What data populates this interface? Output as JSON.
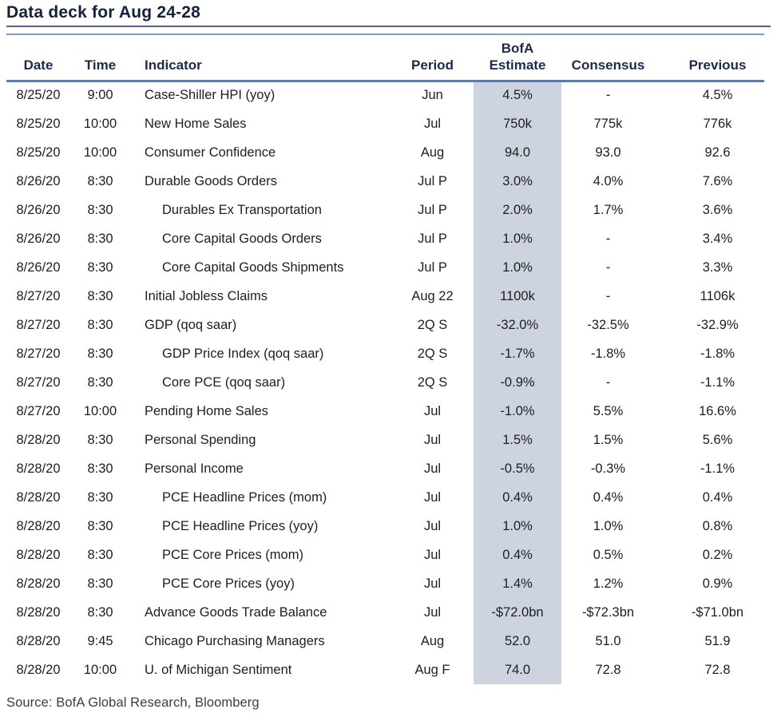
{
  "title": "Data deck for Aug 24-28",
  "source": "Source: BofA Global Research, Bloomberg",
  "colors": {
    "title_text": "#16213d",
    "header_text": "#1c2b4d",
    "body_text": "#1e1e1e",
    "estimate_highlight": "#cdd4df",
    "title_rule": "#566178",
    "table_top_rule": "#7b9cc0",
    "header_rule": "#5d7ba6"
  },
  "table": {
    "header": {
      "date": "Date",
      "time": "Time",
      "indicator": "Indicator",
      "period": "Period",
      "estimate_line1": "BofA",
      "estimate_line2": "Estimate",
      "consensus": "Consensus",
      "previous": "Previous"
    },
    "rows": [
      {
        "date": "8/25/20",
        "time": "9:00",
        "indicator": "Case-Shiller HPI (yoy)",
        "indent": false,
        "period": "Jun",
        "estimate": "4.5%",
        "consensus": "-",
        "previous": "4.5%"
      },
      {
        "date": "8/25/20",
        "time": "10:00",
        "indicator": "New Home Sales",
        "indent": false,
        "period": "Jul",
        "estimate": "750k",
        "consensus": "775k",
        "previous": "776k"
      },
      {
        "date": "8/25/20",
        "time": "10:00",
        "indicator": "Consumer Confidence",
        "indent": false,
        "period": "Aug",
        "estimate": "94.0",
        "consensus": "93.0",
        "previous": "92.6"
      },
      {
        "date": "8/26/20",
        "time": "8:30",
        "indicator": "Durable Goods Orders",
        "indent": false,
        "period": "Jul P",
        "estimate": "3.0%",
        "consensus": "4.0%",
        "previous": "7.6%"
      },
      {
        "date": "8/26/20",
        "time": "8:30",
        "indicator": "Durables Ex Transportation",
        "indent": true,
        "period": "Jul P",
        "estimate": "2.0%",
        "consensus": "1.7%",
        "previous": "3.6%"
      },
      {
        "date": "8/26/20",
        "time": "8:30",
        "indicator": "Core Capital Goods Orders",
        "indent": true,
        "period": "Jul P",
        "estimate": "1.0%",
        "consensus": "-",
        "previous": "3.4%"
      },
      {
        "date": "8/26/20",
        "time": "8:30",
        "indicator": "Core Capital Goods Shipments",
        "indent": true,
        "period": "Jul P",
        "estimate": "1.0%",
        "consensus": "-",
        "previous": "3.3%"
      },
      {
        "date": "8/27/20",
        "time": "8:30",
        "indicator": "Initial Jobless Claims",
        "indent": false,
        "period": "Aug 22",
        "estimate": "1100k",
        "consensus": "-",
        "previous": "1106k"
      },
      {
        "date": "8/27/20",
        "time": "8:30",
        "indicator": "GDP (qoq saar)",
        "indent": false,
        "period": "2Q S",
        "estimate": "-32.0%",
        "consensus": "-32.5%",
        "previous": "-32.9%"
      },
      {
        "date": "8/27/20",
        "time": "8:30",
        "indicator": "GDP Price Index (qoq saar)",
        "indent": true,
        "period": "2Q S",
        "estimate": "-1.7%",
        "consensus": "-1.8%",
        "previous": "-1.8%"
      },
      {
        "date": "8/27/20",
        "time": "8:30",
        "indicator": "Core PCE (qoq saar)",
        "indent": true,
        "period": "2Q S",
        "estimate": "-0.9%",
        "consensus": "-",
        "previous": "-1.1%"
      },
      {
        "date": "8/27/20",
        "time": "10:00",
        "indicator": "Pending Home Sales",
        "indent": false,
        "period": "Jul",
        "estimate": "-1.0%",
        "consensus": "5.5%",
        "previous": "16.6%"
      },
      {
        "date": "8/28/20",
        "time": "8:30",
        "indicator": "Personal Spending",
        "indent": false,
        "period": "Jul",
        "estimate": "1.5%",
        "consensus": "1.5%",
        "previous": "5.6%"
      },
      {
        "date": "8/28/20",
        "time": "8:30",
        "indicator": "Personal Income",
        "indent": false,
        "period": "Jul",
        "estimate": "-0.5%",
        "consensus": "-0.3%",
        "previous": "-1.1%"
      },
      {
        "date": "8/28/20",
        "time": "8:30",
        "indicator": "PCE Headline Prices (mom)",
        "indent": true,
        "period": "Jul",
        "estimate": "0.4%",
        "consensus": "0.4%",
        "previous": "0.4%"
      },
      {
        "date": "8/28/20",
        "time": "8:30",
        "indicator": "PCE Headline Prices (yoy)",
        "indent": true,
        "period": "Jul",
        "estimate": "1.0%",
        "consensus": "1.0%",
        "previous": "0.8%"
      },
      {
        "date": "8/28/20",
        "time": "8:30",
        "indicator": "PCE Core Prices (mom)",
        "indent": true,
        "period": "Jul",
        "estimate": "0.4%",
        "consensus": "0.5%",
        "previous": "0.2%"
      },
      {
        "date": "8/28/20",
        "time": "8:30",
        "indicator": "PCE Core Prices (yoy)",
        "indent": true,
        "period": "Jul",
        "estimate": "1.4%",
        "consensus": "1.2%",
        "previous": "0.9%"
      },
      {
        "date": "8/28/20",
        "time": "8:30",
        "indicator": "Advance Goods Trade Balance",
        "indent": false,
        "period": "Jul",
        "estimate": "-$72.0bn",
        "consensus": "-$72.3bn",
        "previous": "-$71.0bn"
      },
      {
        "date": "8/28/20",
        "time": "9:45",
        "indicator": "Chicago Purchasing Managers",
        "indent": false,
        "period": "Aug",
        "estimate": "52.0",
        "consensus": "51.0",
        "previous": "51.9"
      },
      {
        "date": "8/28/20",
        "time": "10:00",
        "indicator": "U. of Michigan Sentiment",
        "indent": false,
        "period": "Aug F",
        "estimate": "74.0",
        "consensus": "72.8",
        "previous": "72.8"
      }
    ]
  }
}
